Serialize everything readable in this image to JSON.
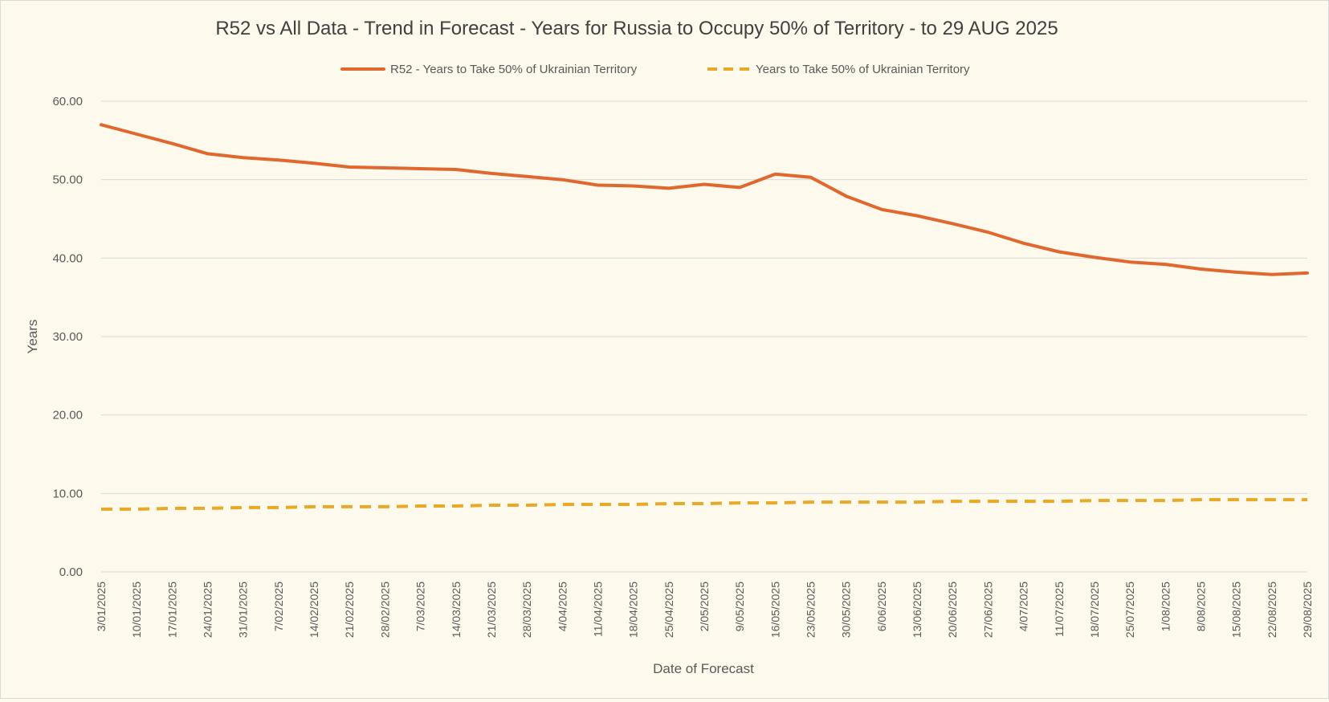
{
  "chart_data": {
    "type": "line",
    "title": "R52 vs All Data  - Trend in Forecast - Years for Russia to Occupy 50% of Territory - to 29 AUG 2025",
    "xlabel": "Date of Forecast",
    "ylabel": "Years",
    "ylim": [
      0,
      60
    ],
    "ytick_labels": [
      "0.00",
      "10.00",
      "20.00",
      "30.00",
      "40.00",
      "50.00",
      "60.00"
    ],
    "grid": true,
    "legend_position": "top",
    "categories": [
      "3/01/2025",
      "10/01/2025",
      "17/01/2025",
      "24/01/2025",
      "31/01/2025",
      "7/02/2025",
      "14/02/2025",
      "21/02/2025",
      "28/02/2025",
      "7/03/2025",
      "14/03/2025",
      "21/03/2025",
      "28/03/2025",
      "4/04/2025",
      "11/04/2025",
      "18/04/2025",
      "25/04/2025",
      "2/05/2025",
      "9/05/2025",
      "16/05/2025",
      "23/05/2025",
      "30/05/2025",
      "6/06/2025",
      "13/06/2025",
      "20/06/2025",
      "27/06/2025",
      "4/07/2025",
      "11/07/2025",
      "18/07/2025",
      "25/07/2025",
      "1/08/2025",
      "8/08/2025",
      "15/08/2025",
      "22/08/2025",
      "29/08/2025"
    ],
    "series": [
      {
        "name": "R52 - Years to Take  50% of Ukrainian Territory",
        "color": "#e0682f",
        "dash": "solid",
        "values": [
          57.0,
          55.8,
          54.6,
          53.3,
          52.8,
          52.5,
          52.1,
          51.6,
          51.5,
          51.4,
          51.3,
          50.8,
          50.4,
          50.0,
          49.3,
          49.2,
          48.9,
          49.4,
          49.0,
          50.7,
          50.3,
          47.9,
          46.2,
          45.4,
          44.4,
          43.3,
          41.9,
          40.8,
          40.1,
          39.5,
          39.2,
          38.6,
          38.2,
          37.9,
          38.1
        ]
      },
      {
        "name": "Years to Take  50% of Ukrainian Territory",
        "color": "#e8a928",
        "dash": "dashed",
        "values": [
          8.0,
          8.0,
          8.1,
          8.1,
          8.2,
          8.2,
          8.3,
          8.3,
          8.3,
          8.4,
          8.4,
          8.5,
          8.5,
          8.6,
          8.6,
          8.6,
          8.7,
          8.7,
          8.8,
          8.8,
          8.9,
          8.9,
          8.9,
          8.9,
          9.0,
          9.0,
          9.0,
          9.0,
          9.1,
          9.1,
          9.1,
          9.2,
          9.2,
          9.2,
          9.2
        ]
      }
    ]
  }
}
